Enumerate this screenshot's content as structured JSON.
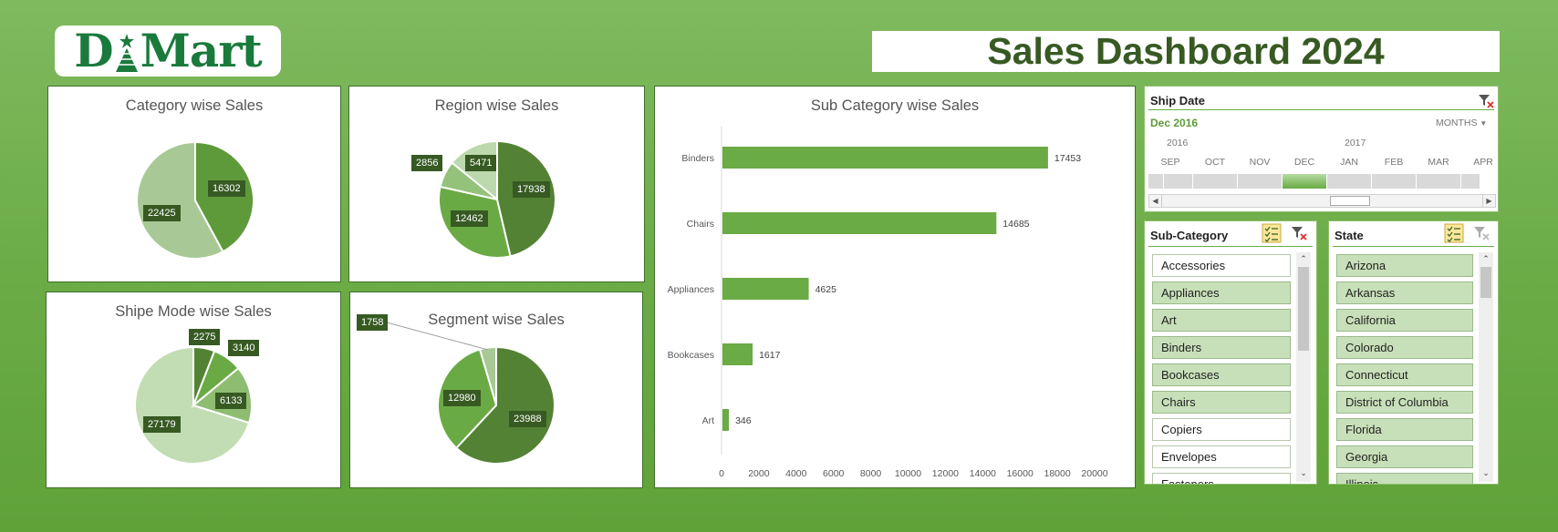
{
  "logo": {
    "text_left": "D",
    "text_right": "Mart"
  },
  "dashboard_title": "Sales Dashboard 2024",
  "charts": {
    "category": {
      "title": "Category wise Sales"
    },
    "region": {
      "title": "Region wise Sales"
    },
    "ship_mode": {
      "title": "Shipe Mode wise Sales"
    },
    "segment": {
      "title": "Segment wise Sales"
    },
    "subcategory": {
      "title": "Sub Category wise Sales"
    }
  },
  "chart_data": [
    {
      "id": "category",
      "type": "pie",
      "title": "Category wise Sales",
      "values": [
        16302,
        22425
      ],
      "labels": [
        "16302",
        "22425"
      ],
      "colors": [
        "#5e9a3a",
        "#a8c995"
      ]
    },
    {
      "id": "region",
      "type": "pie",
      "title": "Region wise Sales",
      "values": [
        17938,
        12462,
        2856,
        5471
      ],
      "labels": [
        "17938",
        "12462",
        "2856",
        "5471"
      ],
      "colors": [
        "#548235",
        "#6aaa45",
        "#95c27b",
        "#bcd8ad"
      ]
    },
    {
      "id": "ship_mode",
      "type": "pie",
      "title": "Shipe Mode wise Sales",
      "values": [
        2275,
        3140,
        6133,
        27179
      ],
      "labels": [
        "2275",
        "3140",
        "6133",
        "27179"
      ],
      "colors": [
        "#548235",
        "#6aaa45",
        "#8ebd72",
        "#c2dcb3"
      ]
    },
    {
      "id": "segment",
      "type": "pie",
      "title": "Segment wise Sales",
      "values": [
        23988,
        12980,
        1758
      ],
      "labels": [
        "23988",
        "12980",
        "1758"
      ],
      "colors": [
        "#548235",
        "#6aaa45",
        "#a8c995"
      ]
    },
    {
      "id": "subcategory",
      "type": "bar",
      "orientation": "horizontal",
      "title": "Sub Category wise Sales",
      "categories": [
        "Binders",
        "Chairs",
        "Appliances",
        "Bookcases",
        "Art"
      ],
      "values": [
        17453,
        14685,
        4625,
        1617,
        346
      ],
      "xlim": [
        0,
        20000
      ],
      "xticks": [
        "0",
        "2000",
        "4000",
        "6000",
        "8000",
        "10000",
        "12000",
        "14000",
        "16000",
        "18000",
        "20000"
      ],
      "color": "#6aab45",
      "grid": false,
      "legend": "none"
    }
  ],
  "ship_date": {
    "header": "Ship Date",
    "selection": "Dec 2016",
    "level": "MONTHS",
    "years": [
      "2016",
      "2017"
    ],
    "months": [
      "SEP",
      "OCT",
      "NOV",
      "DEC",
      "JAN",
      "FEB",
      "MAR",
      "APR"
    ],
    "selected_month": "DEC"
  },
  "subcategory_slicer": {
    "header": "Sub-Category",
    "items": [
      {
        "label": "Accessories",
        "selected": false
      },
      {
        "label": "Appliances",
        "selected": true
      },
      {
        "label": "Art",
        "selected": true
      },
      {
        "label": "Binders",
        "selected": true
      },
      {
        "label": "Bookcases",
        "selected": true
      },
      {
        "label": "Chairs",
        "selected": true
      },
      {
        "label": "Copiers",
        "selected": false
      },
      {
        "label": "Envelopes",
        "selected": false
      },
      {
        "label": "Fasteners",
        "selected": false
      }
    ]
  },
  "state_slicer": {
    "header": "State",
    "items": [
      {
        "label": "Arizona",
        "selected": true
      },
      {
        "label": "Arkansas",
        "selected": true
      },
      {
        "label": "California",
        "selected": true
      },
      {
        "label": "Colorado",
        "selected": true
      },
      {
        "label": "Connecticut",
        "selected": true
      },
      {
        "label": "District of Columbia",
        "selected": true
      },
      {
        "label": "Florida",
        "selected": true
      },
      {
        "label": "Georgia",
        "selected": true
      },
      {
        "label": "Illinois",
        "selected": true
      }
    ]
  },
  "icons": [
    "clear-filter-icon",
    "multi-select-icon",
    "scroll-up-icon",
    "scroll-down-icon",
    "scroll-left-icon",
    "scroll-right-icon"
  ]
}
